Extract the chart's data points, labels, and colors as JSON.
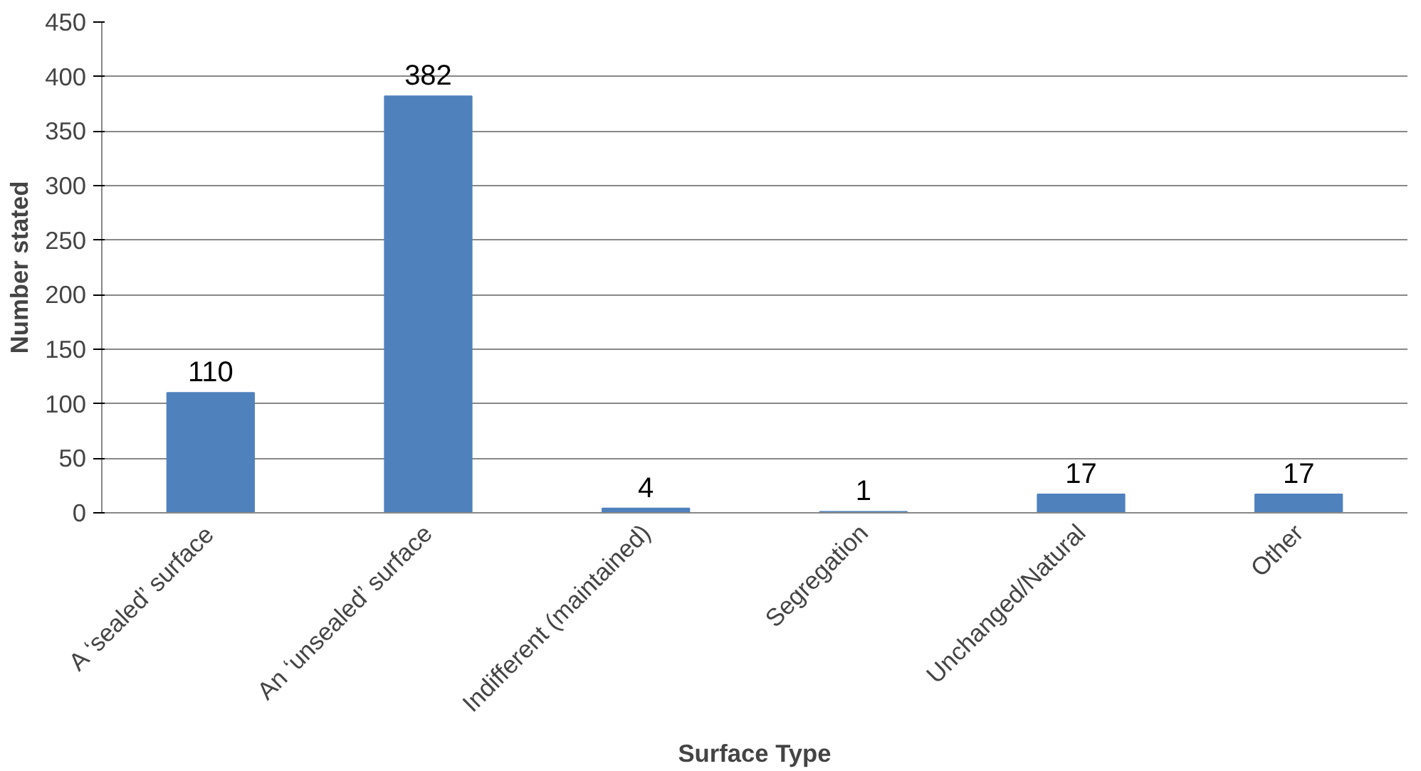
{
  "chart_data": {
    "type": "bar",
    "xlabel": "Surface Type",
    "ylabel": "Number stated",
    "categories": [
      "A ‘sealed’ surface",
      "An ‘unsealed’ surface",
      "Indifferent (maintained)",
      "Segregation",
      "Unchanged/Natural",
      "Other"
    ],
    "values": [
      110,
      382,
      4,
      1,
      17,
      17
    ],
    "color": "#4f81bd",
    "ylim": [
      0,
      450
    ],
    "yticks": [
      0,
      50,
      100,
      150,
      200,
      250,
      300,
      350,
      400,
      450
    ],
    "grid": "y",
    "data_labels": true
  }
}
